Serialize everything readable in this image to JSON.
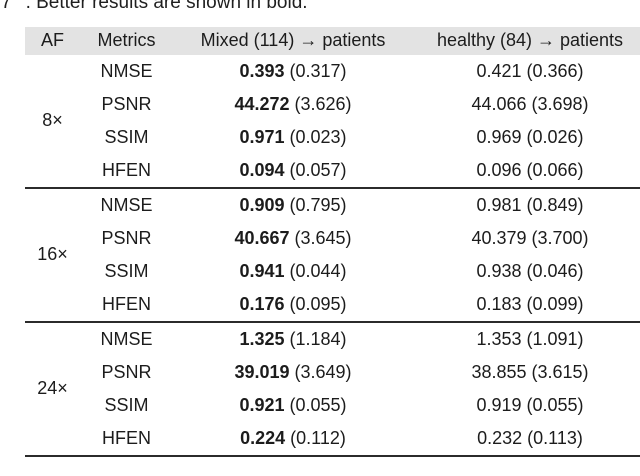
{
  "caption": {
    "cutoff_char": "7",
    "text": ". Better results are shown in bold."
  },
  "colors": {
    "header_bg": "#e3e3e3",
    "text": "#1c1c1c",
    "rule": "#2b2b2b"
  },
  "table": {
    "headers": {
      "af": "AF",
      "metrics": "Metrics",
      "mixed": "Mixed (114) → patients",
      "healthy": "healthy (84) → patients"
    },
    "groups": [
      {
        "af": "8×",
        "rows": [
          {
            "metric": "NMSE",
            "mixed": {
              "value": "0.393",
              "std": "(0.317)"
            },
            "healthy": {
              "value": "0.421",
              "std": "(0.366)"
            }
          },
          {
            "metric": "PSNR",
            "mixed": {
              "value": "44.272",
              "std": "(3.626)"
            },
            "healthy": {
              "value": "44.066",
              "std": "(3.698)"
            }
          },
          {
            "metric": "SSIM",
            "mixed": {
              "value": "0.971",
              "std": "(0.023)"
            },
            "healthy": {
              "value": "0.969",
              "std": "(0.026)"
            }
          },
          {
            "metric": "HFEN",
            "mixed": {
              "value": "0.094",
              "std": "(0.057)"
            },
            "healthy": {
              "value": "0.096",
              "std": "(0.066)"
            }
          }
        ]
      },
      {
        "af": "16×",
        "rows": [
          {
            "metric": "NMSE",
            "mixed": {
              "value": "0.909",
              "std": "(0.795)"
            },
            "healthy": {
              "value": "0.981",
              "std": "(0.849)"
            }
          },
          {
            "metric": "PSNR",
            "mixed": {
              "value": "40.667",
              "std": "(3.645)"
            },
            "healthy": {
              "value": "40.379",
              "std": "(3.700)"
            }
          },
          {
            "metric": "SSIM",
            "mixed": {
              "value": "0.941",
              "std": "(0.044)"
            },
            "healthy": {
              "value": "0.938",
              "std": "(0.046)"
            }
          },
          {
            "metric": "HFEN",
            "mixed": {
              "value": "0.176",
              "std": "(0.095)"
            },
            "healthy": {
              "value": "0.183",
              "std": "(0.099)"
            }
          }
        ]
      },
      {
        "af": "24×",
        "rows": [
          {
            "metric": "NMSE",
            "mixed": {
              "value": "1.325",
              "std": "(1.184)"
            },
            "healthy": {
              "value": "1.353",
              "std": "(1.091)"
            }
          },
          {
            "metric": "PSNR",
            "mixed": {
              "value": "39.019",
              "std": "(3.649)"
            },
            "healthy": {
              "value": "38.855",
              "std": "(3.615)"
            }
          },
          {
            "metric": "SSIM",
            "mixed": {
              "value": "0.921",
              "std": "(0.055)"
            },
            "healthy": {
              "value": "0.919",
              "std": "(0.055)"
            }
          },
          {
            "metric": "HFEN",
            "mixed": {
              "value": "0.224",
              "std": "(0.112)"
            },
            "healthy": {
              "value": "0.232",
              "std": "(0.113)"
            }
          }
        ]
      }
    ]
  }
}
